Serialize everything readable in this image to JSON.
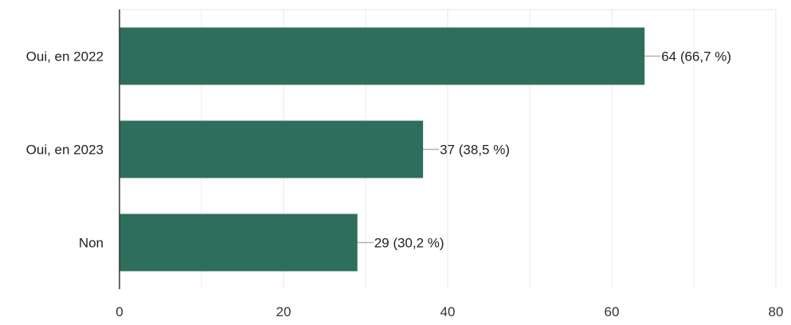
{
  "chart_data": {
    "type": "bar",
    "orientation": "horizontal",
    "categories": [
      "Oui, en 2022",
      "Oui, en 2023",
      "Non"
    ],
    "values": [
      64,
      37,
      29
    ],
    "data_labels": [
      "64 (66,7 %)",
      "37 (38,5 %)",
      "29 (30,2 %)"
    ],
    "xlim": [
      0,
      80
    ],
    "x_ticks": [
      0,
      20,
      40,
      60,
      80
    ],
    "grid": true,
    "colors": {
      "bar": "#2e6e5c",
      "grid": "#e6e6e6",
      "axis": "#333333",
      "leader": "#b0b0b0"
    }
  }
}
